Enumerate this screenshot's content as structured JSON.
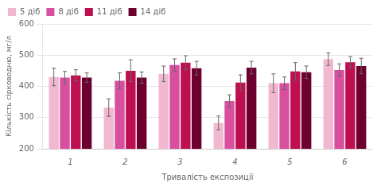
{
  "chart_data": {
    "type": "bar",
    "categories": [
      "1",
      "2",
      "3",
      "4",
      "5",
      "6"
    ],
    "series": [
      {
        "name": "5 діб",
        "color": "#f2b8d0",
        "values": [
          430,
          332,
          440,
          283,
          410,
          487
        ],
        "errors": [
          28,
          28,
          25,
          22,
          30,
          20
        ]
      },
      {
        "name": "8 діб",
        "color": "#d84fa0",
        "values": [
          428,
          418,
          468,
          353,
          410,
          452
        ],
        "errors": [
          20,
          25,
          20,
          20,
          20,
          20
        ]
      },
      {
        "name": "11 діб",
        "color": "#be1050",
        "values": [
          435,
          450,
          476,
          412,
          448,
          477
        ],
        "errors": [
          18,
          35,
          22,
          25,
          28,
          18
        ]
      },
      {
        "name": "14 діб",
        "color": "#6e0030",
        "values": [
          428,
          428,
          458,
          460,
          445,
          465
        ],
        "errors": [
          15,
          18,
          22,
          20,
          20,
          25
        ]
      }
    ],
    "xlabel": "Тривалість експозиції",
    "ylabel": "Кількість сірководню, мг/л",
    "ylim": [
      200,
      600
    ],
    "yticks": [
      200,
      300,
      400,
      500,
      600
    ],
    "grid": true,
    "legend": "upper left"
  }
}
